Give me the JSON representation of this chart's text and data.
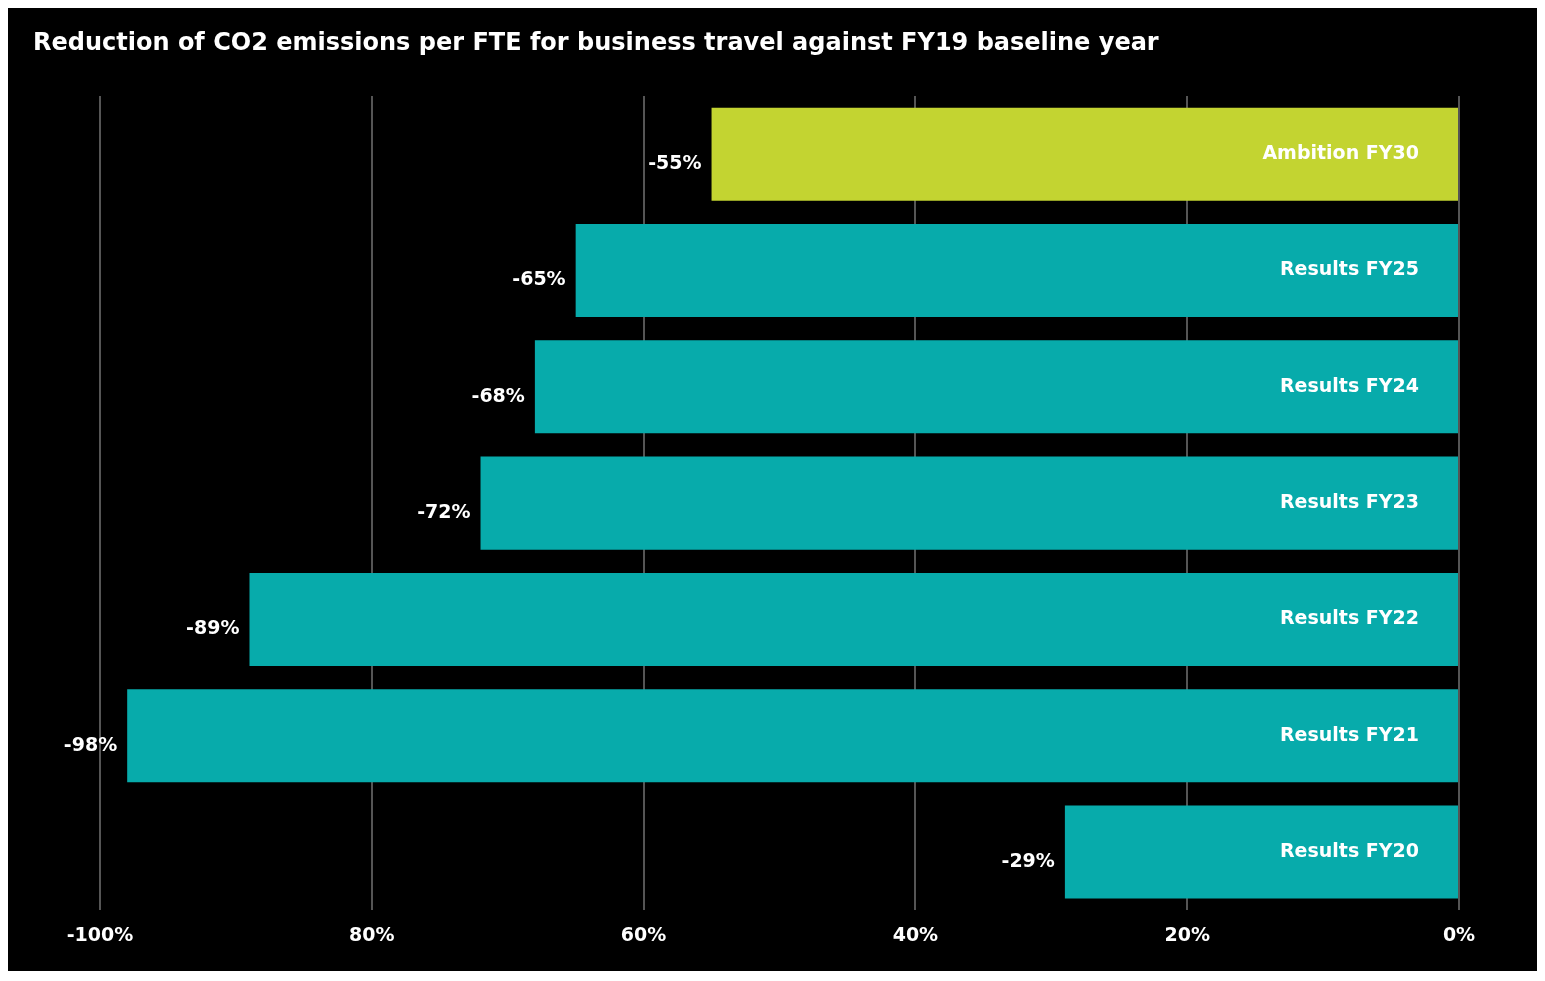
{
  "chart_data": {
    "type": "bar",
    "orientation": "horizontal",
    "title": "Reduction of CO2 emissions per FTE for business travel against FY19 baseline year",
    "categories": [
      "Ambition FY30",
      "Results FY25",
      "Results FY24",
      "Results FY23",
      "Results FY22",
      "Results FY21",
      "Results FY20"
    ],
    "values": [
      -55,
      -65,
      -68,
      -72,
      -89,
      -98,
      -29
    ],
    "value_labels": [
      "-55%",
      "-65%",
      "-68%",
      "-72%",
      "-89%",
      "-98%",
      "-29%"
    ],
    "colors": [
      "#c3d431",
      "#07abab",
      "#07abab",
      "#07abab",
      "#07abab",
      "#07abab",
      "#07abab"
    ],
    "xlim": [
      -100,
      0
    ],
    "xticks": [
      {
        "value": -100,
        "label": "-100%"
      },
      {
        "value": -80,
        "label": "80%"
      },
      {
        "value": -60,
        "label": "60%"
      },
      {
        "value": -40,
        "label": "40%"
      },
      {
        "value": -20,
        "label": "20%"
      },
      {
        "value": 0,
        "label": "0%"
      }
    ],
    "grid": "x",
    "legend": false
  }
}
